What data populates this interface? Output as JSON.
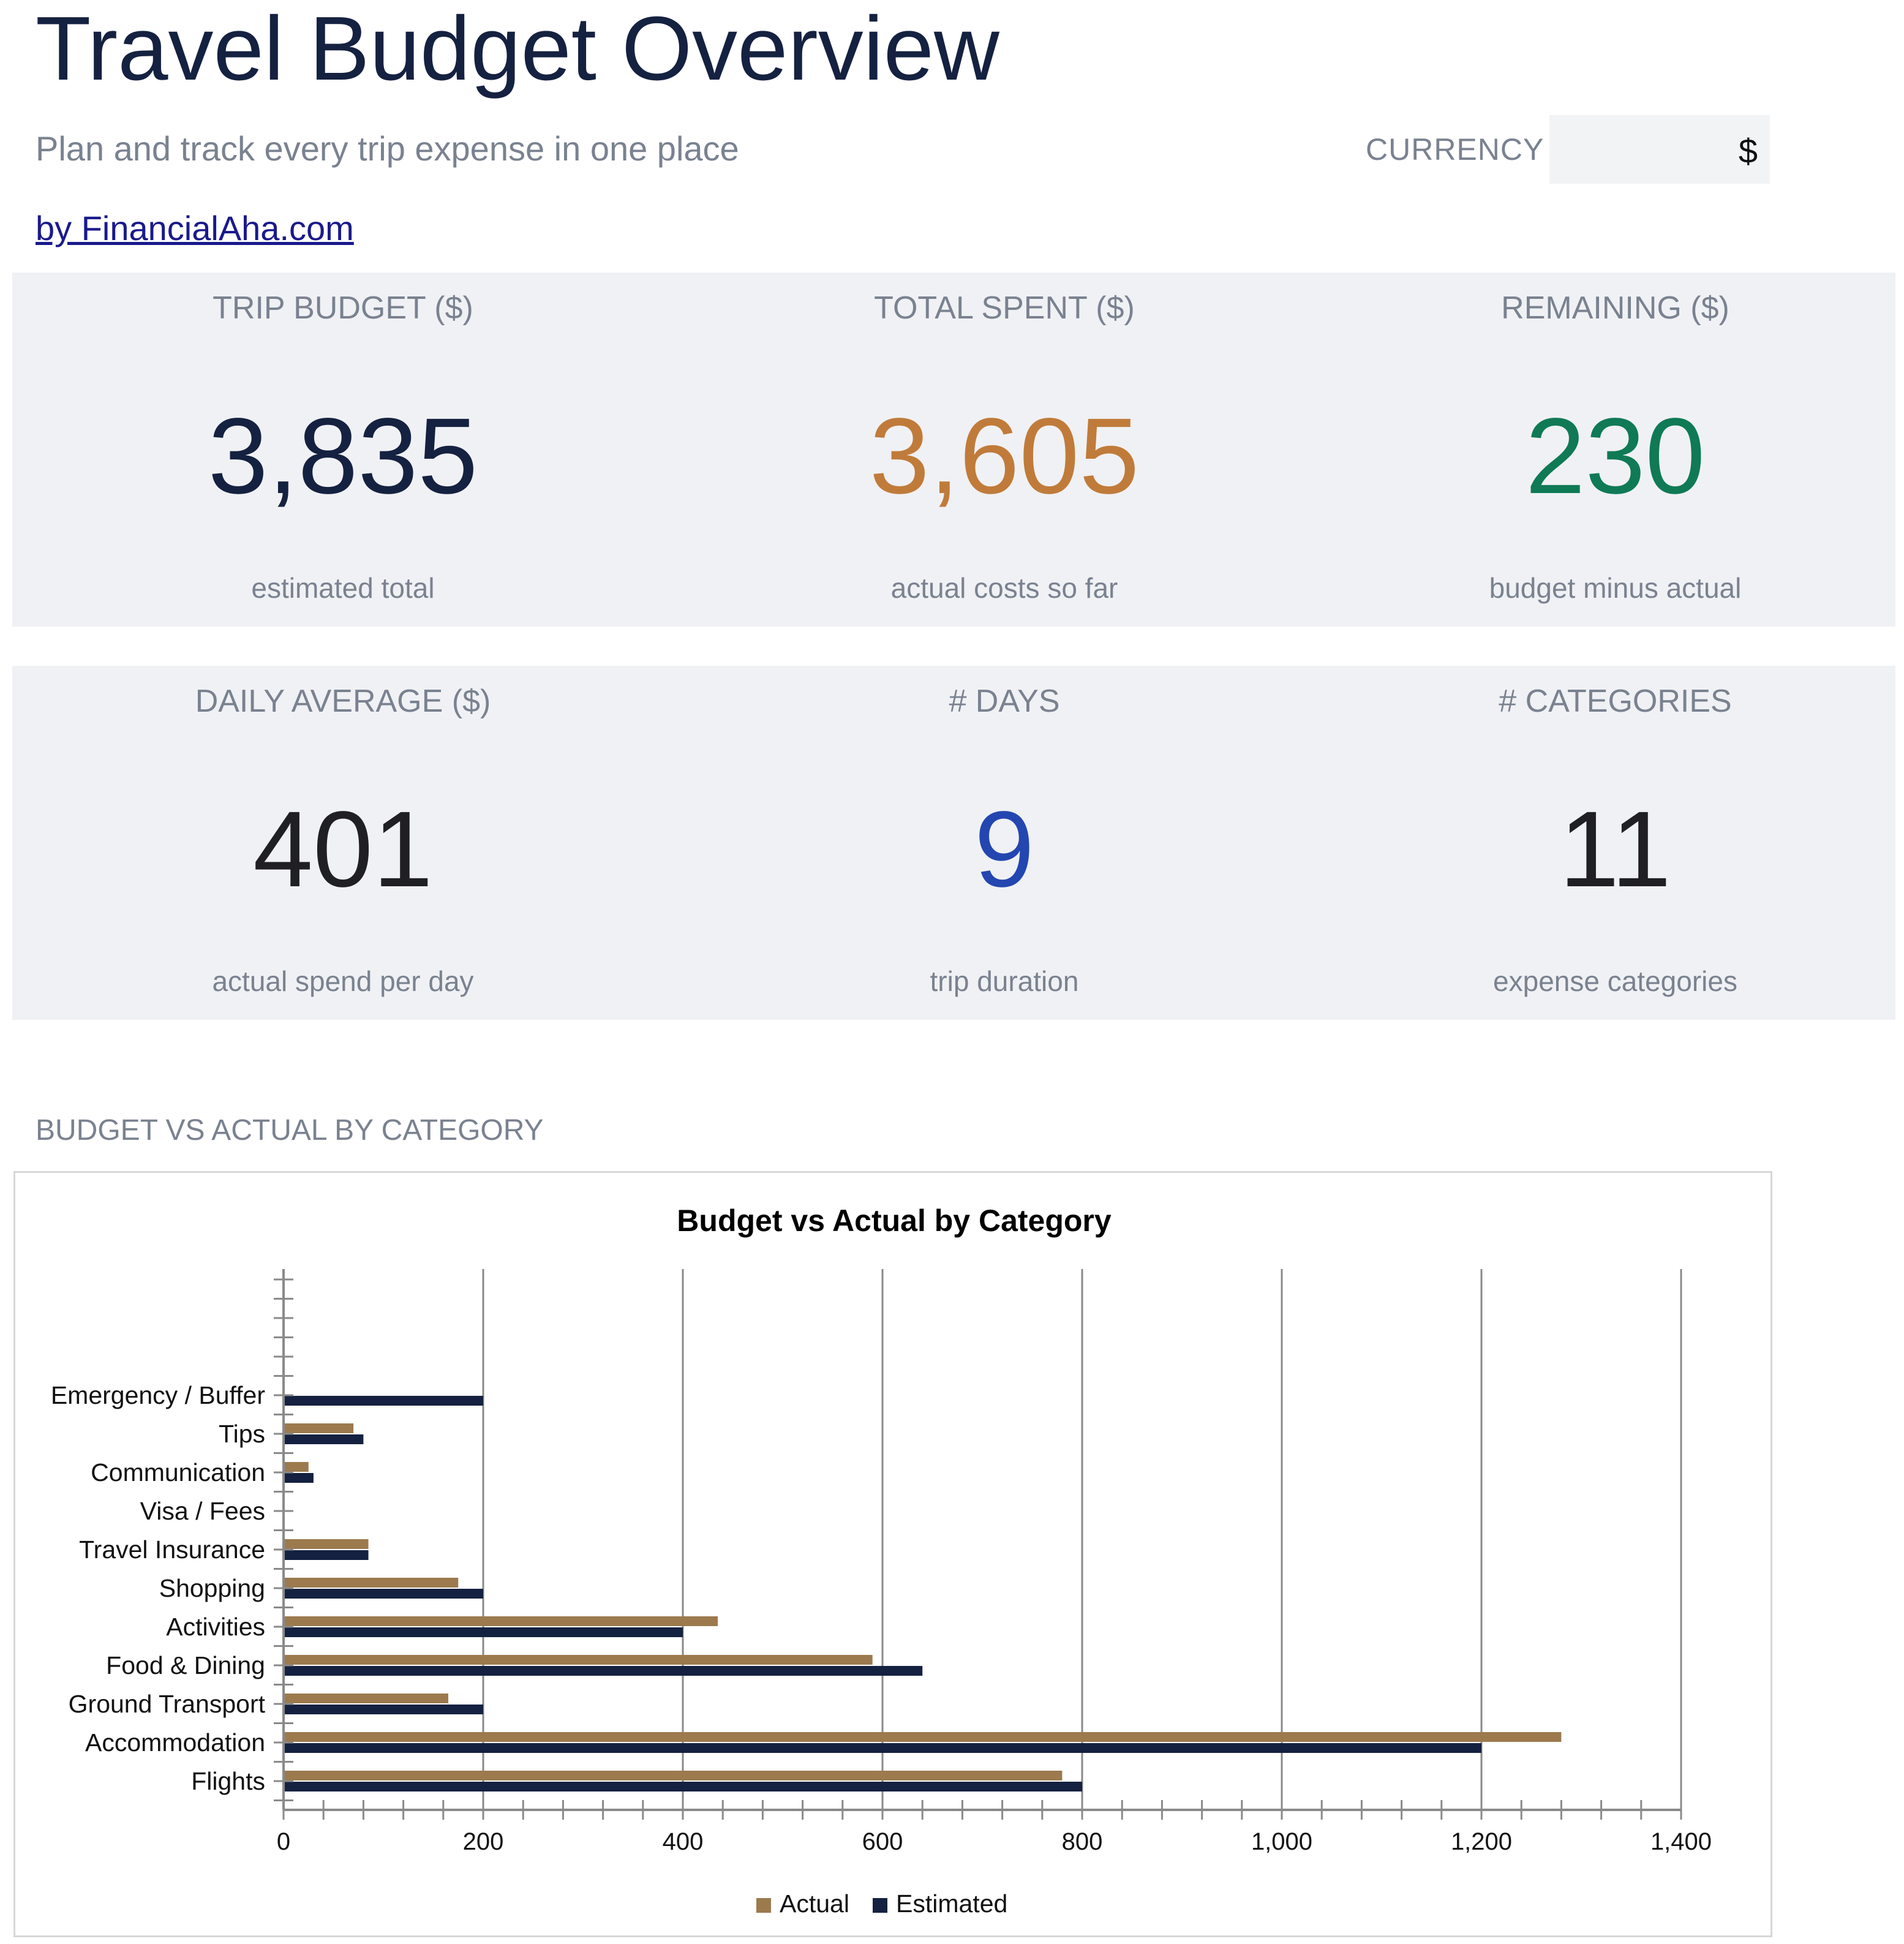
{
  "header": {
    "title": "Travel Budget Overview",
    "subtitle": "Plan and track every trip expense in one place",
    "currency_label": "CURRENCY",
    "currency_value": "$",
    "link": "by FinancialAha.com"
  },
  "kpis_row1": [
    {
      "label": "TRIP BUDGET ($)",
      "value": "3,835",
      "sub": "estimated total",
      "color": "#152140"
    },
    {
      "label": "TOTAL SPENT ($)",
      "value": "3,605",
      "sub": "actual costs so far",
      "color": "#c07b3a"
    },
    {
      "label": "REMAINING ($)",
      "value": "230",
      "sub": "budget minus actual",
      "color": "#0f7a55"
    }
  ],
  "kpis_row2": [
    {
      "label": "DAILY AVERAGE ($)",
      "value": "401",
      "sub": "actual spend per day",
      "color": "#1f1f24"
    },
    {
      "label": "# DAYS",
      "value": "9",
      "sub": "trip duration",
      "color": "#2346b0"
    },
    {
      "label": "# CATEGORIES",
      "value": "11",
      "sub": "expense categories",
      "color": "#1f1f24"
    }
  ],
  "section_heading": "BUDGET VS ACTUAL BY CATEGORY",
  "chart_data": {
    "type": "bar",
    "orientation": "horizontal",
    "title": "Budget vs Actual by Category",
    "categories": [
      "Flights",
      "Accommodation",
      "Ground Transport",
      "Food & Dining",
      "Activities",
      "Shopping",
      "Travel Insurance",
      "Visa / Fees",
      "Communication",
      "Tips",
      "Emergency / Buffer"
    ],
    "series": [
      {
        "name": "Actual",
        "color": "#9c7a4e",
        "values": [
          780,
          1280,
          165,
          590,
          435,
          175,
          85,
          0,
          25,
          70,
          0
        ]
      },
      {
        "name": "Estimated",
        "color": "#152140",
        "values": [
          800,
          1200,
          200,
          640,
          400,
          200,
          85,
          0,
          30,
          80,
          200
        ]
      }
    ],
    "xlim": [
      0,
      1400
    ],
    "xticks": [
      "0",
      "200",
      "400",
      "600",
      "800",
      "1,000",
      "1,200",
      "1,400"
    ],
    "xtick_values": [
      0,
      200,
      400,
      600,
      800,
      1000,
      1200,
      1400
    ],
    "grid": true,
    "legend_position": "bottom"
  }
}
